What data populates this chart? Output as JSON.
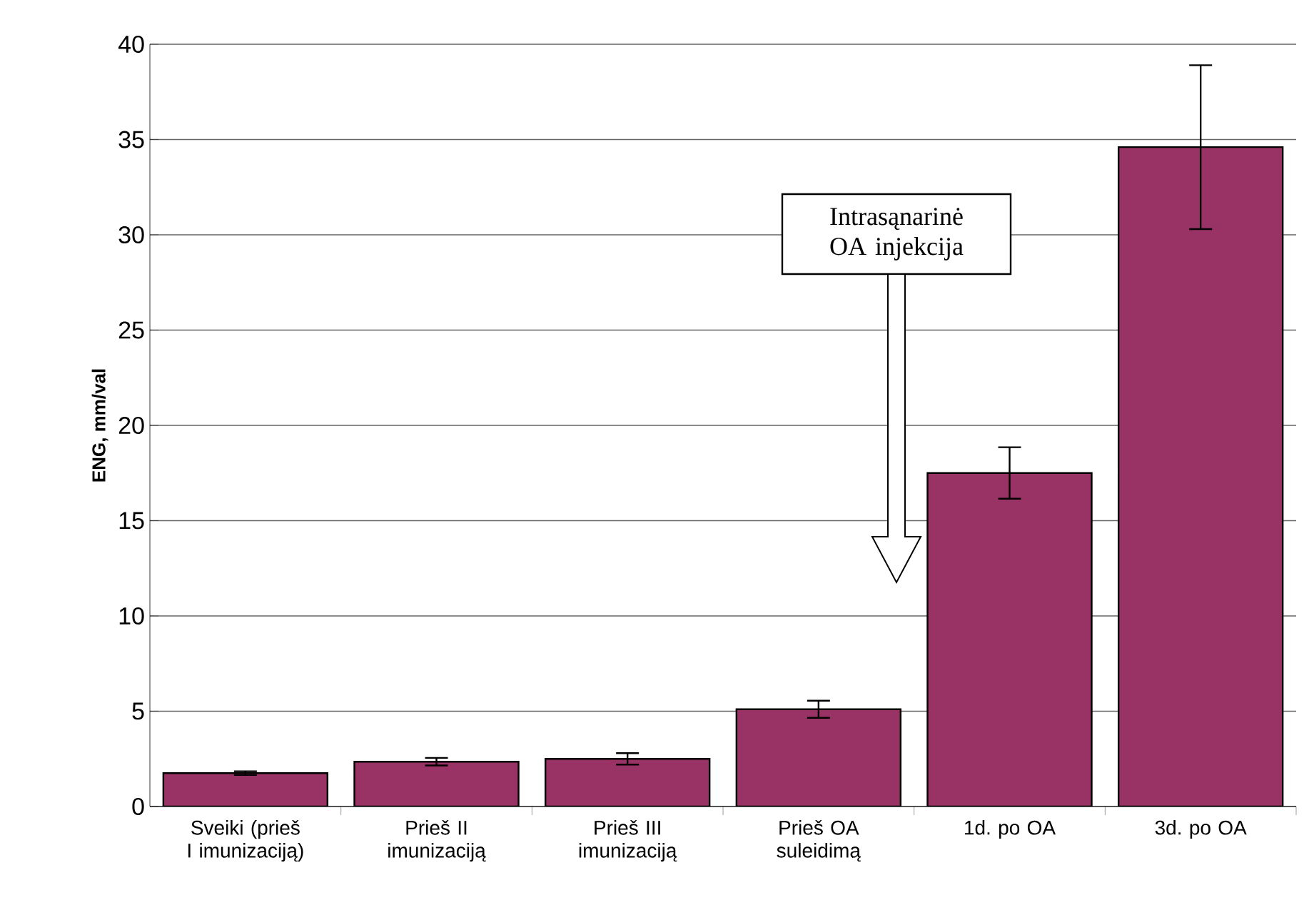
{
  "chart_data": {
    "type": "bar",
    "ylabel": "ENG, mm/val",
    "categories": [
      "Sveiki (prieš I imunizaciją)",
      "Prieš II imunizaciją",
      "Prieš III imunizaciją",
      "Prieš OA suleidimą",
      "1d. po OA",
      "3d. po OA"
    ],
    "values": [
      1.75,
      2.35,
      2.5,
      5.1,
      17.5,
      34.6
    ],
    "errors": [
      0.1,
      0.2,
      0.3,
      0.45,
      1.35,
      4.3
    ],
    "color": "#993366",
    "ylim": [
      0,
      40
    ],
    "yticks": [
      0,
      5,
      10,
      15,
      20,
      25,
      30,
      35,
      40
    ],
    "grid": "y",
    "annotations": [
      "Intrasąnarinė OA injekcija"
    ]
  }
}
